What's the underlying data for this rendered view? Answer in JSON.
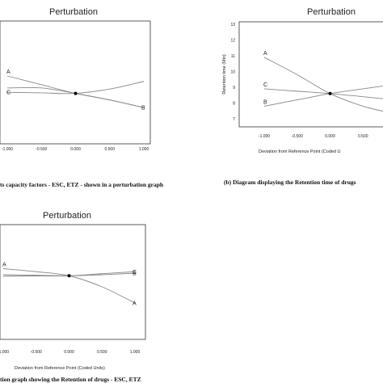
{
  "chart_data": [
    {
      "type": "line",
      "title": "Perturbation",
      "xlabel": "",
      "ylabel": "",
      "xlim": [
        -1,
        1
      ],
      "ylim": [
        0,
        1
      ],
      "grid": false,
      "x_ticks": [
        "-1.000",
        "-0.500",
        "0.000",
        "0.500",
        "1.000"
      ],
      "x_tick_values": [
        -1,
        -0.5,
        0,
        0.5,
        1
      ],
      "y_ticks": [],
      "series": [
        {
          "name": "A",
          "x": [
            -1,
            -0.5,
            0,
            0.5,
            1
          ],
          "y": [
            0.6,
            0.52,
            0.44,
            0.38,
            0.31
          ]
        },
        {
          "name": "B",
          "x": [
            -1,
            -0.5,
            0,
            0.5,
            1
          ],
          "y": [
            0.49,
            0.49,
            0.44,
            0.38,
            0.31
          ]
        },
        {
          "name": "C",
          "x": [
            -1,
            -0.5,
            0,
            0.5,
            1
          ],
          "y": [
            0.45,
            0.445,
            0.44,
            0.48,
            0.55
          ]
        }
      ],
      "caption": "ts capacity factors - ESC, ETZ - shown in a perturbation graph"
    },
    {
      "type": "line",
      "title": "Perturbation",
      "xlabel": "Deviation from Reference Point (Coded U",
      "ylabel": "Retention time (Min)",
      "xlim": [
        -1,
        1
      ],
      "ylim": [
        7,
        13
      ],
      "grid": false,
      "x_ticks": [
        "-1.000",
        "-0.500",
        "0.000",
        "0.500"
      ],
      "x_tick_values": [
        -1,
        -0.5,
        0,
        0.5
      ],
      "y_ticks": [
        "7",
        "8",
        "9",
        "10",
        "11",
        "12",
        "13"
      ],
      "y_tick_values": [
        7,
        8,
        9,
        10,
        11,
        12,
        13
      ],
      "series": [
        {
          "name": "A",
          "x": [
            -1,
            -0.5,
            0,
            0.5,
            1
          ],
          "y": [
            10.9,
            9.8,
            8.6,
            7.8,
            7.3
          ]
        },
        {
          "name": "B",
          "x": [
            -1,
            -0.5,
            0,
            0.5,
            1
          ],
          "y": [
            7.8,
            8.2,
            8.6,
            8.9,
            9.2
          ]
        },
        {
          "name": "C",
          "x": [
            -1,
            -0.5,
            0,
            0.5,
            1
          ],
          "y": [
            8.9,
            8.75,
            8.6,
            8.4,
            8.2
          ]
        }
      ],
      "caption": "(b) Diagram displaying the Retention time of drugs"
    },
    {
      "type": "line",
      "title": "Perturbation",
      "xlabel": "Deviation from Reference Point (Coded Units)",
      "ylabel": "",
      "xlim": [
        -1,
        1
      ],
      "ylim": [
        0,
        1
      ],
      "grid": false,
      "x_ticks": [
        "-1.000",
        "-0.500",
        "0.000",
        "0.500",
        "1.000"
      ],
      "x_tick_values": [
        -1,
        -0.5,
        0,
        0.5,
        1
      ],
      "y_ticks": [],
      "series": [
        {
          "name": "A",
          "x": [
            -1,
            -0.5,
            0,
            0.5,
            1
          ],
          "y": [
            0.62,
            0.59,
            0.55,
            0.44,
            0.28
          ]
        },
        {
          "name": "B",
          "x": [
            -1,
            -0.5,
            0,
            0.5,
            1
          ],
          "y": [
            0.56,
            0.555,
            0.55,
            0.56,
            0.575
          ]
        },
        {
          "name": "C",
          "x": [
            -1,
            -0.5,
            0,
            0.5,
            1
          ],
          "y": [
            0.545,
            0.548,
            0.55,
            0.57,
            0.59
          ]
        }
      ],
      "caption": "tion graph showing the Retention of drugs - ESC, ETZ"
    }
  ]
}
